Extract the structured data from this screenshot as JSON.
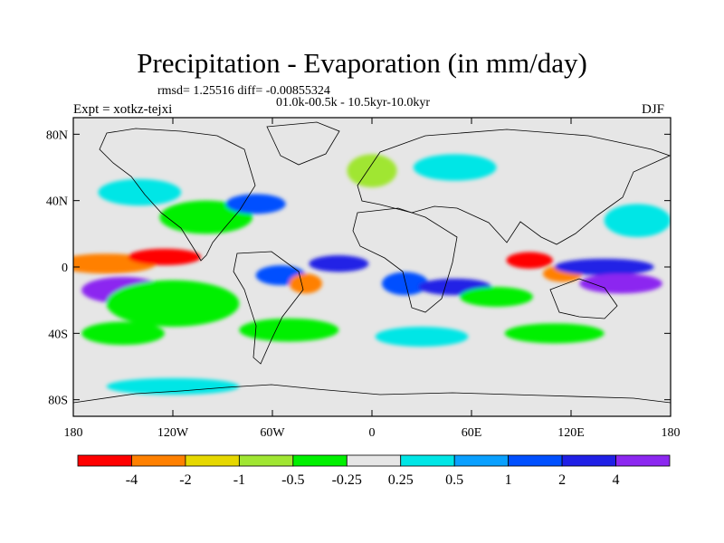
{
  "title": "Precipitation - Evaporation (in mm/day)",
  "stats": "rmsd= 1.25516 diff= -0.00855324",
  "period": "01.0k-00.5k - 10.5kyr-10.0kyr",
  "expt": "Expt = xotkz-tejxi",
  "season": "DJF",
  "map": {
    "lon_range": [
      -180,
      180
    ],
    "lat_range": [
      -90,
      90
    ],
    "background_color": "#e6e6e6",
    "lat_ticks": [
      {
        "lat": 80,
        "label": "80N"
      },
      {
        "lat": 40,
        "label": "40N"
      },
      {
        "lat": 0,
        "label": "0"
      },
      {
        "lat": -40,
        "label": "40S"
      },
      {
        "lat": -80,
        "label": "80S"
      }
    ],
    "lon_ticks": [
      {
        "lon": -180,
        "label": "180"
      },
      {
        "lon": -120,
        "label": "120W"
      },
      {
        "lon": -60,
        "label": "60W"
      },
      {
        "lon": 0,
        "label": "0"
      },
      {
        "lon": 60,
        "label": "60E"
      },
      {
        "lon": 120,
        "label": "120E"
      },
      {
        "lon": 180,
        "label": "180"
      }
    ]
  },
  "colorbar": {
    "colors": [
      "#ff0000",
      "#ff8000",
      "#e6d800",
      "#a0e632",
      "#00f000",
      "#e6e6e6",
      "#00e6e6",
      "#0aa0ff",
      "#0050ff",
      "#2020e6",
      "#8c28f0"
    ],
    "labels": [
      "-4",
      "-2",
      "-1",
      "-0.5",
      "-0.25",
      "0.25",
      "0.5",
      "1",
      "2",
      "4"
    ]
  },
  "field_blobs": [
    {
      "lon": -160,
      "lat": 2,
      "rlon": 30,
      "rlat": 6,
      "level": 1
    },
    {
      "lon": -125,
      "lat": 6,
      "rlon": 22,
      "rlat": 5,
      "level": 0
    },
    {
      "lon": -150,
      "lat": -14,
      "rlon": 25,
      "rlat": 8,
      "level": 10
    },
    {
      "lon": -120,
      "lat": -22,
      "rlon": 40,
      "rlat": 14,
      "level": 4
    },
    {
      "lon": -100,
      "lat": 30,
      "rlon": 28,
      "rlat": 10,
      "level": 4
    },
    {
      "lon": -140,
      "lat": 45,
      "rlon": 25,
      "rlat": 8,
      "level": 6
    },
    {
      "lon": -70,
      "lat": 38,
      "rlon": 18,
      "rlat": 6,
      "level": 8
    },
    {
      "lon": -55,
      "lat": -5,
      "rlon": 15,
      "rlat": 6,
      "level": 8
    },
    {
      "lon": -40,
      "lat": -10,
      "rlon": 10,
      "rlat": 6,
      "level": 1
    },
    {
      "lon": -20,
      "lat": 2,
      "rlon": 18,
      "rlat": 5,
      "level": 9
    },
    {
      "lon": 20,
      "lat": -10,
      "rlon": 14,
      "rlat": 7,
      "level": 8
    },
    {
      "lon": 50,
      "lat": -12,
      "rlon": 22,
      "rlat": 5,
      "level": 9
    },
    {
      "lon": 75,
      "lat": -18,
      "rlon": 22,
      "rlat": 6,
      "level": 4
    },
    {
      "lon": 95,
      "lat": 4,
      "rlon": 14,
      "rlat": 5,
      "level": 0
    },
    {
      "lon": 115,
      "lat": -4,
      "rlon": 12,
      "rlat": 5,
      "level": 1
    },
    {
      "lon": 140,
      "lat": 0,
      "rlon": 30,
      "rlat": 5,
      "level": 9
    },
    {
      "lon": 150,
      "lat": -10,
      "rlon": 25,
      "rlat": 6,
      "level": 10
    },
    {
      "lon": 160,
      "lat": 28,
      "rlon": 20,
      "rlat": 10,
      "level": 6
    },
    {
      "lon": -150,
      "lat": -40,
      "rlon": 25,
      "rlat": 7,
      "level": 4
    },
    {
      "lon": -50,
      "lat": -38,
      "rlon": 30,
      "rlat": 7,
      "level": 4
    },
    {
      "lon": 30,
      "lat": -42,
      "rlon": 28,
      "rlat": 6,
      "level": 6
    },
    {
      "lon": 110,
      "lat": -40,
      "rlon": 30,
      "rlat": 6,
      "level": 4
    },
    {
      "lon": -120,
      "lat": -72,
      "rlon": 40,
      "rlat": 5,
      "level": 6
    },
    {
      "lon": 50,
      "lat": 60,
      "rlon": 25,
      "rlat": 8,
      "level": 6
    },
    {
      "lon": 0,
      "lat": 58,
      "rlon": 15,
      "rlat": 10,
      "level": 3
    }
  ]
}
